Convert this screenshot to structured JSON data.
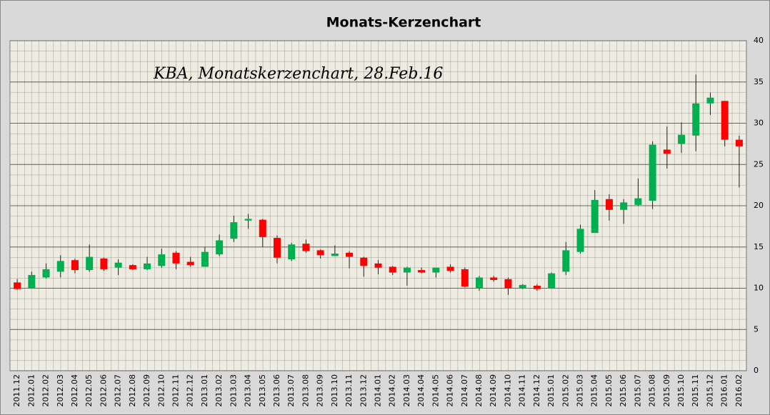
{
  "chart_data": {
    "type": "candlestick",
    "title": "Monats-Kerzenchart",
    "annotation": "KBA, Monatskerzenchart, 28.Feb.16",
    "categories": [
      "2011.12",
      "2012.01",
      "2012.02",
      "2012.03",
      "2012.04",
      "2012.05",
      "2012.06",
      "2012.07",
      "2012.08",
      "2012.09",
      "2012.10",
      "2012.11",
      "2012.12",
      "2013.01",
      "2013.02",
      "2013.03",
      "2013.04",
      "2013.05",
      "2013.06",
      "2013.07",
      "2013.08",
      "2013.09",
      "2013.10",
      "2013.11",
      "2013.12",
      "2014.01",
      "2014.02",
      "2014.03",
      "2014.04",
      "2014.05",
      "2014.06",
      "2014.07",
      "2014.08",
      "2014.09",
      "2014.10",
      "2014.11",
      "2014.12",
      "2015.01",
      "2015.02",
      "2015.03",
      "2015.04",
      "2015.05",
      "2015.06",
      "2015.07",
      "2015.08",
      "2015.09",
      "2015.10",
      "2015.11",
      "2015.12",
      "2016.01",
      "2016.02"
    ],
    "open": [
      10.7,
      10.0,
      11.3,
      12.0,
      13.4,
      12.2,
      13.6,
      12.5,
      12.8,
      12.3,
      12.7,
      14.3,
      13.2,
      12.6,
      14.1,
      16.0,
      18.2,
      18.3,
      16.1,
      13.5,
      15.4,
      14.6,
      13.9,
      14.3,
      13.7,
      13.0,
      12.6,
      11.9,
      12.2,
      11.9,
      12.6,
      12.3,
      10.0,
      11.3,
      11.1,
      10.0,
      10.3,
      10.0,
      12.0,
      14.4,
      16.7,
      20.8,
      19.5,
      20.1,
      20.6,
      26.8,
      27.5,
      28.5,
      32.4,
      32.7,
      28.0
    ],
    "high": [
      11.1,
      12.0,
      13.0,
      14.0,
      13.6,
      15.3,
      13.7,
      13.5,
      12.9,
      13.8,
      14.8,
      14.5,
      13.8,
      15.0,
      16.5,
      18.8,
      19.0,
      18.4,
      16.4,
      15.5,
      15.9,
      14.7,
      15.2,
      14.5,
      13.8,
      13.4,
      12.7,
      12.6,
      12.5,
      12.5,
      12.9,
      12.5,
      11.5,
      11.5,
      11.3,
      10.5,
      10.5,
      11.9,
      15.6,
      17.7,
      21.9,
      21.4,
      20.8,
      23.3,
      27.8,
      29.6,
      30.1,
      35.9,
      33.7,
      32.7,
      28.5
    ],
    "low": [
      9.8,
      10.0,
      11.2,
      11.3,
      11.8,
      12.0,
      12.1,
      11.6,
      12.2,
      12.2,
      12.5,
      12.3,
      12.6,
      12.6,
      13.9,
      15.6,
      17.2,
      15.0,
      13.0,
      13.3,
      14.3,
      13.6,
      13.9,
      12.4,
      11.4,
      11.7,
      11.6,
      10.3,
      11.8,
      11.3,
      11.9,
      10.1,
      9.7,
      10.8,
      9.2,
      9.9,
      9.7,
      10.0,
      11.6,
      14.2,
      16.7,
      18.2,
      17.8,
      20.0,
      19.6,
      24.5,
      26.4,
      26.6,
      31.0,
      27.2,
      22.2
    ],
    "close": [
      9.9,
      11.6,
      12.3,
      13.3,
      12.2,
      13.8,
      12.3,
      13.1,
      12.3,
      13.0,
      14.1,
      13.0,
      12.8,
      14.4,
      15.8,
      18.0,
      18.4,
      16.2,
      13.7,
      15.3,
      14.5,
      14.0,
      14.2,
      13.8,
      12.7,
      12.5,
      11.9,
      12.5,
      11.9,
      12.5,
      12.1,
      10.2,
      11.3,
      11.0,
      10.0,
      10.4,
      9.9,
      11.8,
      14.6,
      17.2,
      20.7,
      19.5,
      20.4,
      20.9,
      27.4,
      26.3,
      28.6,
      32.4,
      33.1,
      28.0,
      27.2
    ],
    "up_color": "#00b050",
    "down_color": "#ff0000",
    "ylim": [
      0,
      40
    ],
    "yticks": [
      0,
      5,
      10,
      15,
      20,
      25,
      30,
      35,
      40
    ],
    "grid": true
  }
}
